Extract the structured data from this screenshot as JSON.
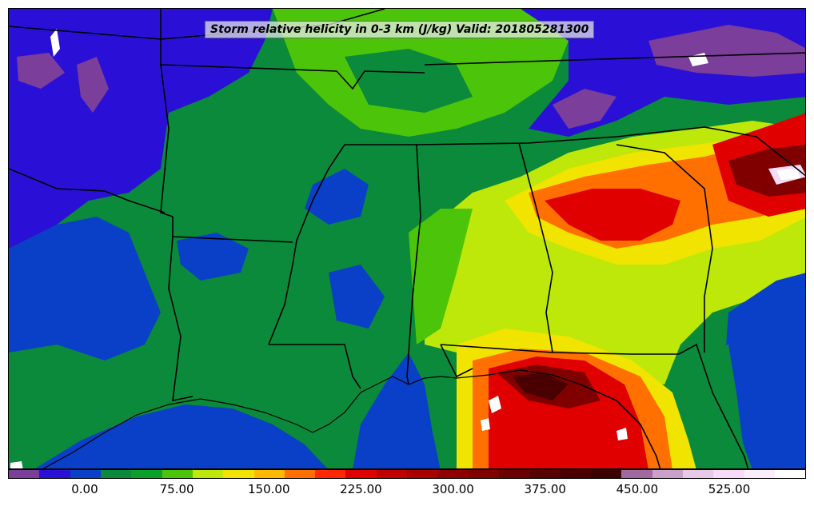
{
  "map": {
    "title": "Storm relative helicity in 0-3 km (J/kg) Valid: 201805281300",
    "valid_time": "201805281300",
    "variable": "Storm relative helicity in 0-3 km",
    "units": "J/kg"
  },
  "colorbar": {
    "min": -50,
    "max": 600,
    "interval": 25,
    "tick_labels": [
      "0.00",
      "75.00",
      "150.00",
      "225.00",
      "300.00",
      "375.00",
      "450.00",
      "525.00"
    ],
    "tick_values": [
      0,
      75,
      150,
      225,
      300,
      375,
      450,
      525
    ],
    "colors": [
      "#7b3e9a",
      "#2a10d6",
      "#0a3fc8",
      "#0a8a3a",
      "#0aa02a",
      "#4cc40a",
      "#bde80a",
      "#f0e400",
      "#ffb800",
      "#ff7000",
      "#ff2800",
      "#e00000",
      "#c00000",
      "#a80000",
      "#900000",
      "#800000",
      "#6a0000",
      "#580000",
      "#4a0000",
      "#3c0000",
      "#a06aa0",
      "#c8a0c8",
      "#e8c8e8",
      "#f6dcf6",
      "#fbeefb",
      "#ffffff"
    ]
  }
}
